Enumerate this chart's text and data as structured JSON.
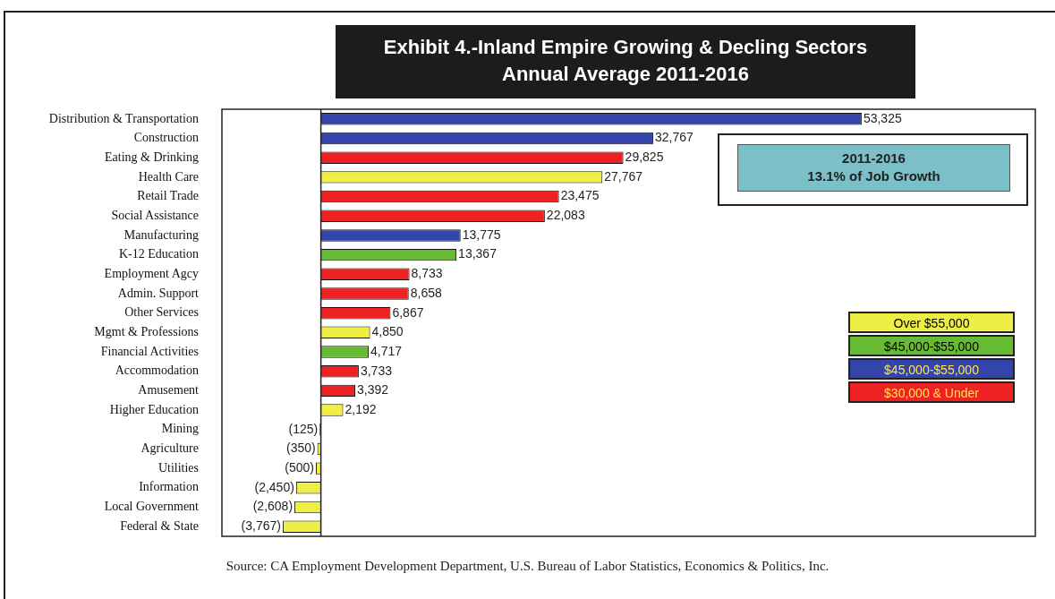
{
  "chart_data": {
    "type": "bar",
    "orientation": "horizontal",
    "stacked": true,
    "title": "Exhibit 4.-Inland Empire Growing & Decling Sectors",
    "subtitle": "Annual Average 2011-2016",
    "categories": [
      "Distribution & Transportation",
      "Construction",
      "Eating & Drinking",
      "Health Care",
      "Retail Trade",
      "Social Assistance",
      "Manufacturing",
      "K-12 Education",
      "Employment Agcy",
      "Admin. Support",
      "Other Services",
      "Mgmt & Professions",
      "Financial Activities",
      "Accommodation",
      "Amusement",
      "Higher Education",
      "Mining",
      "Agriculture",
      "Utilities",
      "Information",
      "Local Government",
      "Federal & State"
    ],
    "series": [
      {
        "name": "Over $55,000",
        "color": "#eeee44",
        "values": [
          null,
          null,
          null,
          27767,
          null,
          null,
          null,
          null,
          null,
          null,
          null,
          4850,
          null,
          null,
          null,
          2192,
          -125,
          -350,
          -500,
          -2450,
          -2608,
          -3767
        ],
        "value_labels": [
          null,
          null,
          null,
          "27,767",
          null,
          null,
          null,
          null,
          null,
          null,
          null,
          "4,850",
          null,
          null,
          null,
          "2,192",
          "(125)",
          "(350)",
          "(500)",
          "(2,450)",
          "(2,608)",
          "(3,767)"
        ]
      },
      {
        "name": "$45,000-$55,000",
        "color": "#66bb33",
        "values": [
          null,
          null,
          null,
          null,
          null,
          null,
          null,
          13367,
          null,
          null,
          null,
          null,
          4717,
          null,
          null,
          null,
          null,
          null,
          null,
          null,
          null,
          null
        ],
        "value_labels": [
          null,
          null,
          null,
          null,
          null,
          null,
          null,
          "13,367",
          null,
          null,
          null,
          null,
          "4,717",
          null,
          null,
          null,
          null,
          null,
          null,
          null,
          null,
          null
        ]
      },
      {
        "name": "$45,000-$55,000",
        "color": "#3344aa",
        "values": [
          53325,
          32767,
          null,
          null,
          null,
          null,
          13775,
          null,
          null,
          null,
          null,
          null,
          null,
          null,
          null,
          null,
          null,
          null,
          null,
          null,
          null,
          null
        ],
        "value_labels": [
          "53,325",
          "32,767",
          null,
          null,
          null,
          null,
          "13,775",
          null,
          null,
          null,
          null,
          null,
          null,
          null,
          null,
          null,
          null,
          null,
          null,
          null,
          null,
          null
        ]
      },
      {
        "name": "$30,000 & Under",
        "color": "#ee2222",
        "values": [
          null,
          null,
          29825,
          null,
          23475,
          22083,
          null,
          null,
          8733,
          8658,
          6867,
          null,
          null,
          3733,
          3392,
          null,
          null,
          null,
          null,
          null,
          null,
          null
        ],
        "value_labels": [
          null,
          null,
          "29,825",
          null,
          "23,475",
          "22,083",
          null,
          null,
          "8,733",
          "8,658",
          "6,867",
          null,
          null,
          "3,733",
          "3,392",
          null,
          null,
          null,
          null,
          null,
          null,
          null
        ]
      }
    ],
    "legend": "right",
    "grid": false,
    "annotations": [
      "2011-2016\n13.1% of Job Growth",
      "Source:  CA Employment Development Department, U.S. Bureau of Labor Statistics, Economics & Politics, Inc."
    ]
  }
}
